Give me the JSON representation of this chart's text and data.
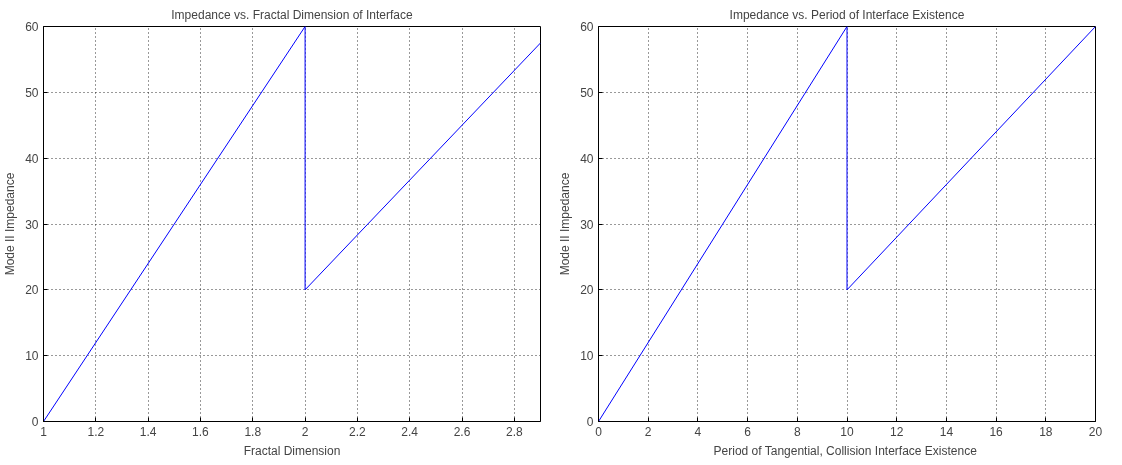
{
  "chart_data": [
    {
      "type": "line",
      "title": "Impedance vs. Fractal Dimension of Interface",
      "xlabel": "Fractal Dimension",
      "ylabel": "Mode II Impedance",
      "grid": true,
      "line_style": "solid",
      "series": [
        {
          "color": "#0000ff",
          "x": [
            1,
            2,
            2,
            2.9
          ],
          "values": [
            0,
            60,
            20,
            57.5
          ]
        }
      ],
      "xlim": [
        1,
        2.9
      ],
      "ylim": [
        0,
        60
      ],
      "xticks": [
        1,
        1.2,
        1.4,
        1.6,
        1.8,
        2,
        2.2,
        2.4,
        2.6,
        2.8
      ],
      "yticks": [
        0,
        10,
        20,
        30,
        40,
        50,
        60
      ]
    },
    {
      "type": "line",
      "title": "Impedance vs. Period of Interface Existence",
      "xlabel": "Period of  Tangential, Collision Interface Existence",
      "ylabel": "Mode II Impedance",
      "grid": true,
      "line_style": "solid",
      "series": [
        {
          "color": "#0000ff",
          "x": [
            0,
            10,
            10,
            20
          ],
          "values": [
            0,
            60,
            20,
            60
          ]
        }
      ],
      "xlim": [
        0,
        20
      ],
      "ylim": [
        0,
        60
      ],
      "xticks": [
        0,
        2,
        4,
        6,
        8,
        10,
        12,
        14,
        16,
        18,
        20
      ],
      "yticks": [
        0,
        10,
        20,
        30,
        40,
        50,
        60
      ]
    }
  ]
}
